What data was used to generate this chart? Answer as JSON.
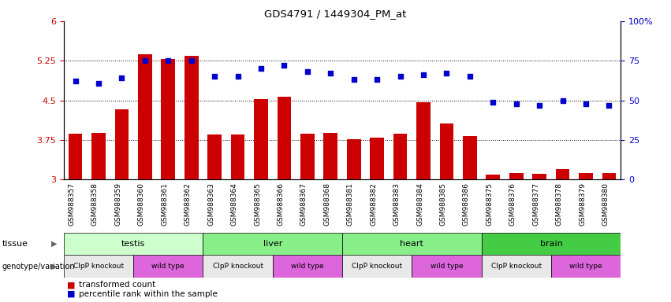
{
  "title": "GDS4791 / 1449304_PM_at",
  "samples": [
    "GSM988357",
    "GSM988358",
    "GSM988359",
    "GSM988360",
    "GSM988361",
    "GSM988362",
    "GSM988363",
    "GSM988364",
    "GSM988365",
    "GSM988366",
    "GSM988367",
    "GSM988368",
    "GSM988381",
    "GSM988382",
    "GSM988383",
    "GSM988384",
    "GSM988385",
    "GSM988386",
    "GSM988375",
    "GSM988376",
    "GSM988377",
    "GSM988378",
    "GSM988379",
    "GSM988380"
  ],
  "bar_values": [
    3.87,
    3.89,
    4.33,
    5.37,
    5.28,
    5.35,
    3.85,
    3.85,
    4.52,
    4.57,
    3.87,
    3.88,
    3.77,
    3.8,
    3.87,
    4.46,
    4.07,
    3.83,
    3.1,
    3.13,
    3.11,
    3.2,
    3.13,
    3.13
  ],
  "dot_values": [
    62,
    61,
    64,
    75,
    75,
    75,
    65,
    65,
    70,
    72,
    68,
    67,
    63,
    63,
    65,
    66,
    67,
    65,
    49,
    48,
    47,
    50,
    48,
    47
  ],
  "bar_color": "#cc0000",
  "dot_color": "#0000cc",
  "ylim_left": [
    3.0,
    6.0
  ],
  "ylim_right": [
    0,
    100
  ],
  "yticks_left": [
    3.0,
    3.75,
    4.5,
    5.25,
    6.0
  ],
  "ytick_labels_left": [
    "3",
    "3.75",
    "4.5",
    "5.25",
    "6"
  ],
  "yticks_right": [
    0,
    25,
    50,
    75,
    100
  ],
  "ytick_labels_right": [
    "0",
    "25",
    "50",
    "75",
    "100%"
  ],
  "hlines": [
    3.75,
    4.5,
    5.25
  ],
  "tissues": [
    {
      "label": "testis",
      "start": 0,
      "end": 6,
      "color": "#ccffcc"
    },
    {
      "label": "liver",
      "start": 6,
      "end": 12,
      "color": "#88ee88"
    },
    {
      "label": "heart",
      "start": 12,
      "end": 18,
      "color": "#88ee88"
    },
    {
      "label": "brain",
      "start": 18,
      "end": 24,
      "color": "#44cc44"
    }
  ],
  "genotypes": [
    {
      "label": "ClpP knockout",
      "start": 0,
      "end": 3,
      "color": "#e8e8e8"
    },
    {
      "label": "wild type",
      "start": 3,
      "end": 6,
      "color": "#dd66dd"
    },
    {
      "label": "ClpP knockout",
      "start": 6,
      "end": 9,
      "color": "#e8e8e8"
    },
    {
      "label": "wild type",
      "start": 9,
      "end": 12,
      "color": "#dd66dd"
    },
    {
      "label": "ClpP knockout",
      "start": 12,
      "end": 15,
      "color": "#e8e8e8"
    },
    {
      "label": "wild type",
      "start": 15,
      "end": 18,
      "color": "#dd66dd"
    },
    {
      "label": "ClpP knockout",
      "start": 18,
      "end": 21,
      "color": "#e8e8e8"
    },
    {
      "label": "wild type",
      "start": 21,
      "end": 24,
      "color": "#dd66dd"
    }
  ]
}
